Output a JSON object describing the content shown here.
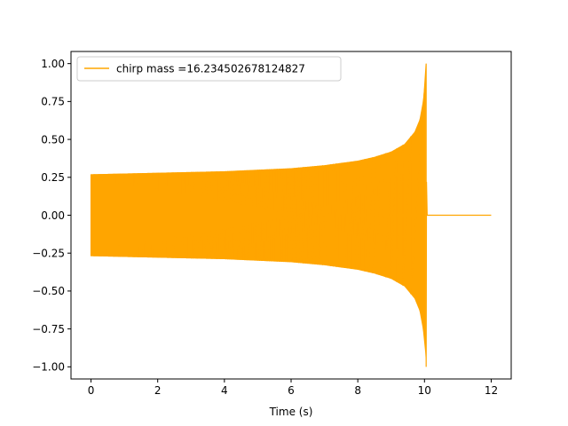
{
  "chart_data": {
    "type": "line",
    "title": "",
    "xlabel": "Time (s)",
    "ylabel": "",
    "xlim": [
      -0.6,
      12.6
    ],
    "ylim": [
      -1.08,
      1.08
    ],
    "x_ticks": [
      0,
      2,
      4,
      6,
      8,
      10,
      12
    ],
    "y_ticks": [
      -1.0,
      -0.75,
      -0.5,
      -0.25,
      0.0,
      0.25,
      0.5,
      0.75,
      1.0
    ],
    "x_tick_labels": [
      "0",
      "2",
      "4",
      "6",
      "8",
      "10",
      "12"
    ],
    "y_tick_labels": [
      "−1.00",
      "−0.75",
      "−0.50",
      "−0.25",
      "0.00",
      "0.25",
      "0.50",
      "0.75",
      "1.00"
    ],
    "grid": false,
    "legend_position": "upper-left",
    "series": [
      {
        "name": "chirp mass =16.234502678124827",
        "color": "#FFA500",
        "envelope_time": [
          0.0,
          1.0,
          2.0,
          3.0,
          4.0,
          5.0,
          6.0,
          7.0,
          8.0,
          8.5,
          9.0,
          9.4,
          9.7,
          9.85,
          9.95,
          10.02,
          10.05
        ],
        "envelope_amplitude": [
          0.27,
          0.275,
          0.28,
          0.285,
          0.29,
          0.3,
          0.31,
          0.33,
          0.36,
          0.385,
          0.42,
          0.47,
          0.55,
          0.63,
          0.75,
          0.9,
          1.0
        ],
        "flat_after": [
          10.05,
          12.0
        ],
        "flat_value": 0.0
      }
    ]
  }
}
